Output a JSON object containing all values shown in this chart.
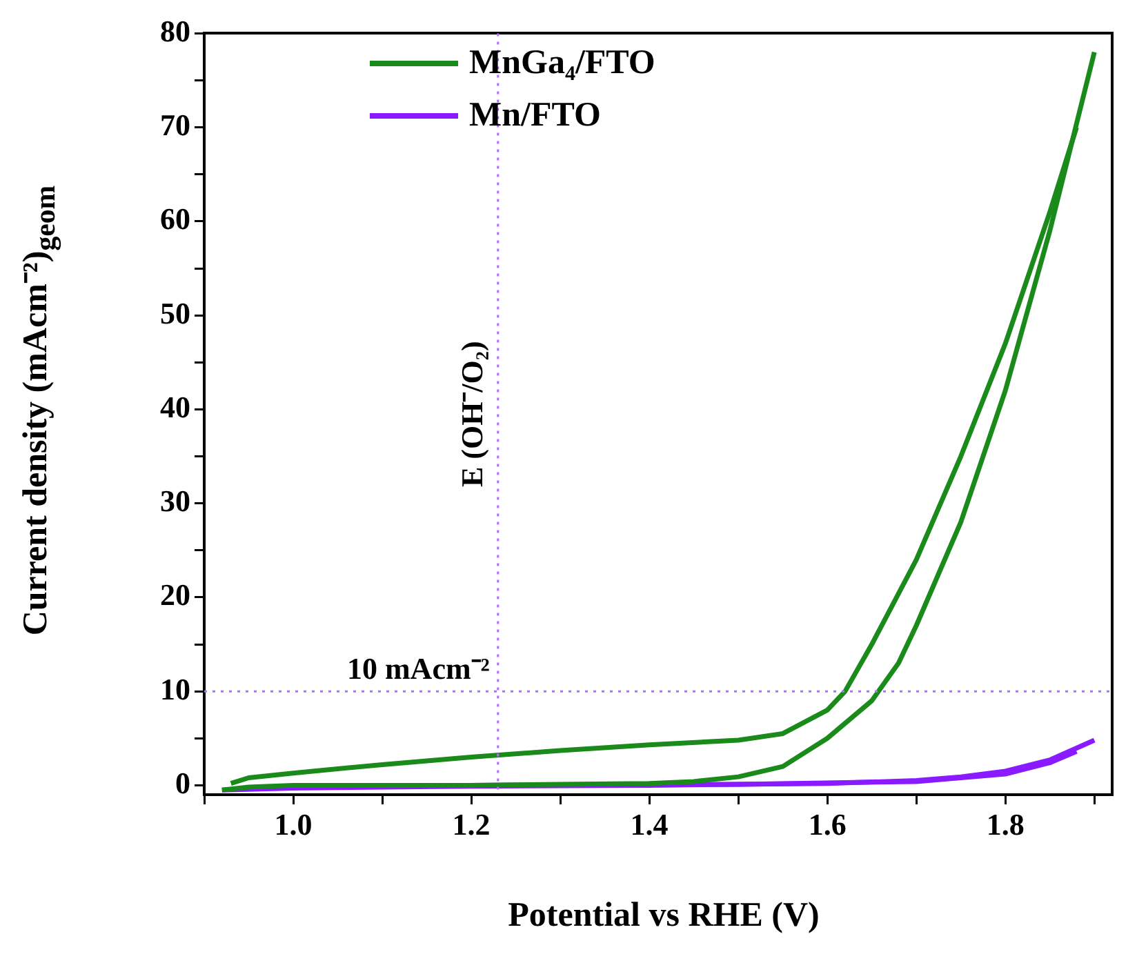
{
  "chart_data": {
    "type": "line",
    "xlabel": "Potential vs RHE (V)",
    "ylabel": "Current density (mAcm⁻²)$_{geom}$",
    "xlim": [
      0.9,
      1.92
    ],
    "xticks": [
      {
        "value": 0.9,
        "label": null
      },
      {
        "value": 1.0,
        "label": "1.0"
      },
      {
        "value": 1.1,
        "label": null
      },
      {
        "value": 1.2,
        "label": "1.2"
      },
      {
        "value": 1.3,
        "label": null
      },
      {
        "value": 1.4,
        "label": "1.4"
      },
      {
        "value": 1.5,
        "label": null
      },
      {
        "value": 1.6,
        "label": "1.6"
      },
      {
        "value": 1.7,
        "label": null
      },
      {
        "value": 1.8,
        "label": "1.8"
      },
      {
        "value": 1.9,
        "label": null
      }
    ],
    "ylim": [
      -1,
      80
    ],
    "yticks": [
      0,
      {
        "value": 5,
        "label": null
      },
      10,
      {
        "value": 15,
        "label": null
      },
      20,
      {
        "value": 25,
        "label": null
      },
      30,
      {
        "value": 35,
        "label": null
      },
      40,
      {
        "value": 45,
        "label": null
      },
      50,
      {
        "value": 55,
        "label": null
      },
      60,
      {
        "value": 65,
        "label": null
      },
      70,
      {
        "value": 75,
        "label": null
      },
      80
    ],
    "grid": false,
    "legend": "top",
    "marker": "none",
    "line_style": "solid",
    "series": [
      {
        "name": "MnGa₄/FTO",
        "color": "#1a8a1a",
        "x": [
          0.92,
          0.95,
          1.0,
          1.1,
          1.2,
          1.3,
          1.4,
          1.45,
          1.5,
          1.55,
          1.6,
          1.65,
          1.68,
          1.7,
          1.75,
          1.8,
          1.85,
          1.9
        ],
        "values": [
          -0.5,
          -0.2,
          0,
          0,
          0,
          0.1,
          0.2,
          0.4,
          0.9,
          2,
          5,
          9,
          13,
          17,
          28,
          42,
          59,
          78
        ]
      },
      {
        "color": "#1a8a1a",
        "x": [
          0.93,
          0.95,
          1.0,
          1.1,
          1.2,
          1.3,
          1.4,
          1.5,
          1.55,
          1.6,
          1.62,
          1.65,
          1.7,
          1.75,
          1.8,
          1.85,
          1.88
        ],
        "values": [
          0.2,
          0.8,
          1.3,
          2.2,
          3,
          3.7,
          4.3,
          4.8,
          5.5,
          8,
          10,
          15,
          24,
          35,
          47,
          61,
          70
        ]
      },
      {
        "name": "Mn/FTO",
        "color": "#8a1aff",
        "x": [
          0.92,
          1.0,
          1.2,
          1.4,
          1.6,
          1.7,
          1.75,
          1.8,
          1.85,
          1.9
        ],
        "values": [
          -0.5,
          -0.3,
          -0.1,
          0,
          0.2,
          0.5,
          0.9,
          1.5,
          2.7,
          4.8
        ]
      },
      {
        "color": "#8a1aff",
        "x": [
          0.95,
          1.0,
          1.2,
          1.5,
          1.7,
          1.8,
          1.85,
          1.88
        ],
        "values": [
          -0.3,
          -0.2,
          0,
          0.1,
          0.4,
          1.2,
          2.4,
          3.6
        ]
      }
    ],
    "ref_lines": [
      {
        "axis": "x",
        "value": 1.23,
        "label": "E (OH⁻/O₂)",
        "color": "#b070ff",
        "line_style": "dotted"
      },
      {
        "axis": "y",
        "value": 10,
        "label": "10 mAcm⁻²",
        "color": "#b070ff",
        "line_style": "dotted"
      }
    ]
  }
}
